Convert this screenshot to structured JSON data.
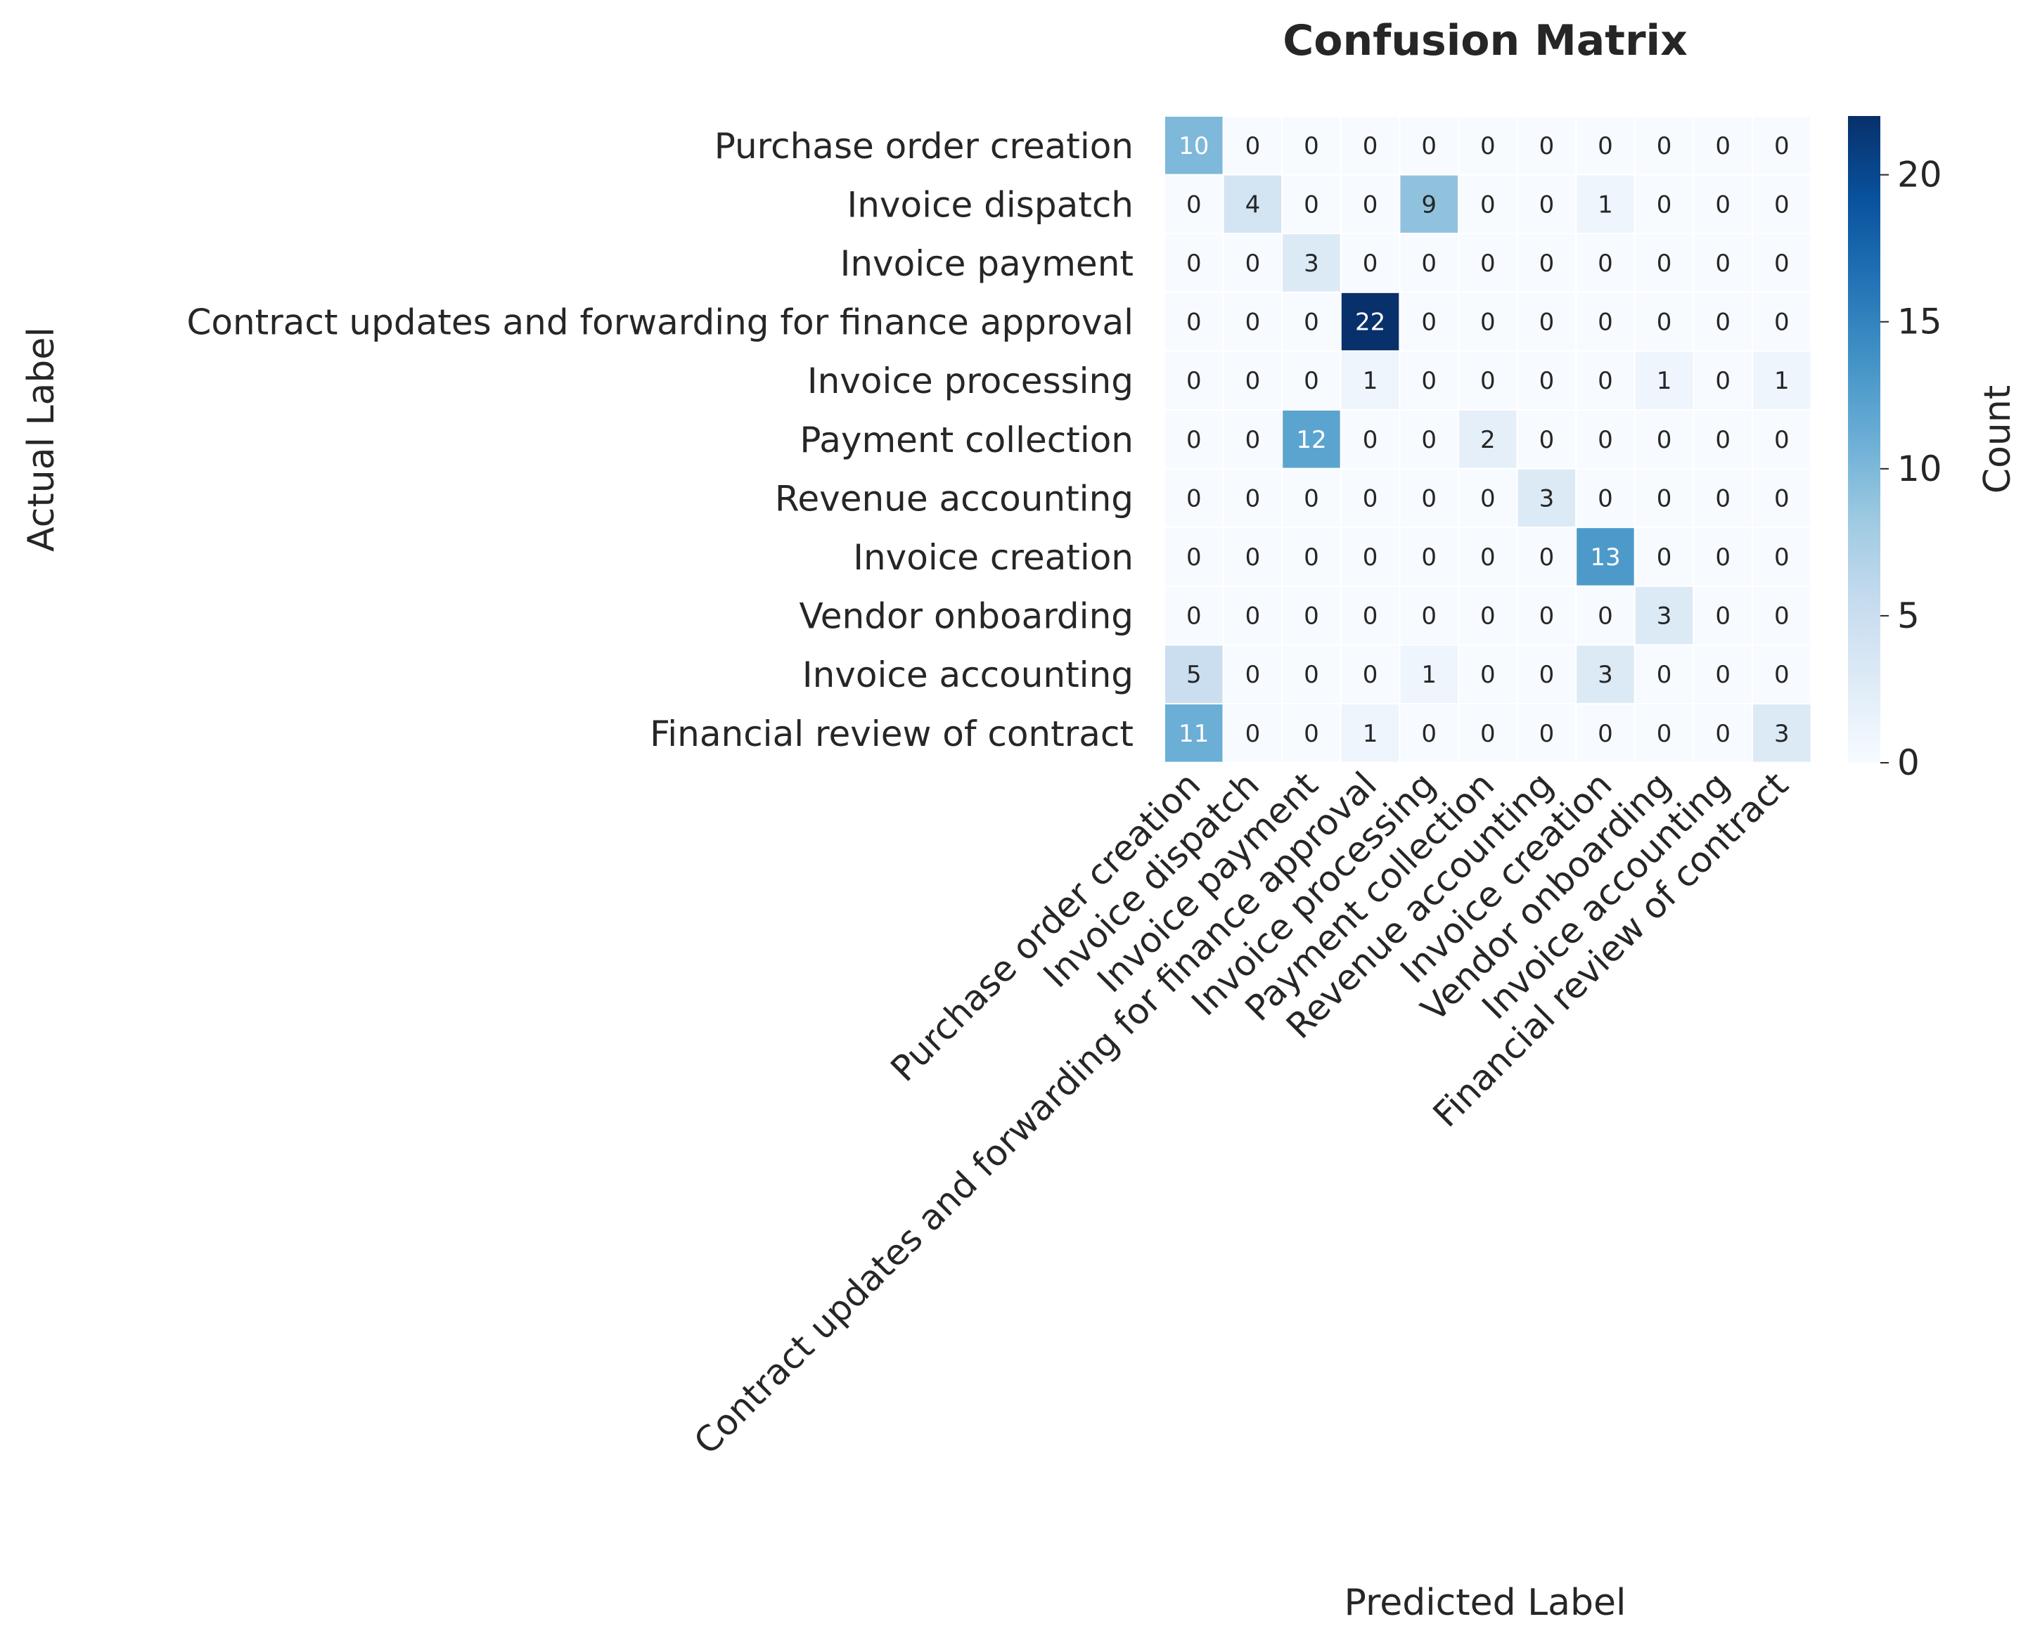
{
  "chart_data": {
    "type": "heatmap",
    "title": "Confusion Matrix",
    "xlabel": "Predicted Label",
    "ylabel": "Actual Label",
    "colorbar_label": "Count",
    "colormap": "Blues",
    "vmin": 0,
    "vmax": 22,
    "colorbar_ticks": [
      0,
      5,
      10,
      15,
      20
    ],
    "row_labels": [
      "Purchase order creation",
      "Invoice dispatch",
      "Invoice payment",
      "Contract updates and forwarding for finance approval",
      "Invoice processing",
      "Payment collection",
      "Revenue accounting",
      "Invoice creation",
      "Vendor onboarding",
      "Invoice accounting",
      "Financial review of contract"
    ],
    "col_labels": [
      "Purchase order creation",
      "Invoice dispatch",
      "Invoice payment",
      "Contract updates and forwarding for finance approval",
      "Invoice processing",
      "Payment collection",
      "Revenue accounting",
      "Invoice creation",
      "Vendor onboarding",
      "Invoice accounting",
      "Financial review of contract"
    ],
    "matrix": [
      [
        10,
        0,
        0,
        0,
        0,
        0,
        0,
        0,
        0,
        0,
        0
      ],
      [
        0,
        4,
        0,
        0,
        9,
        0,
        0,
        1,
        0,
        0,
        0
      ],
      [
        0,
        0,
        3,
        0,
        0,
        0,
        0,
        0,
        0,
        0,
        0
      ],
      [
        0,
        0,
        0,
        22,
        0,
        0,
        0,
        0,
        0,
        0,
        0
      ],
      [
        0,
        0,
        0,
        1,
        0,
        0,
        0,
        0,
        1,
        0,
        1
      ],
      [
        0,
        0,
        12,
        0,
        0,
        2,
        0,
        0,
        0,
        0,
        0
      ],
      [
        0,
        0,
        0,
        0,
        0,
        0,
        3,
        0,
        0,
        0,
        0
      ],
      [
        0,
        0,
        0,
        0,
        0,
        0,
        0,
        13,
        0,
        0,
        0
      ],
      [
        0,
        0,
        0,
        0,
        0,
        0,
        0,
        0,
        3,
        0,
        0
      ],
      [
        5,
        0,
        0,
        0,
        1,
        0,
        0,
        3,
        0,
        0,
        0
      ],
      [
        11,
        0,
        0,
        1,
        0,
        0,
        0,
        0,
        0,
        0,
        3
      ]
    ]
  }
}
